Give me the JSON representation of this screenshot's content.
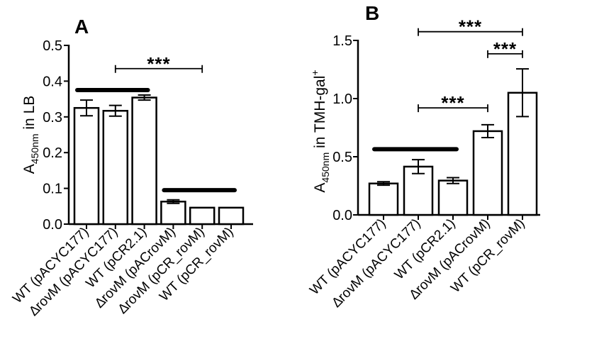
{
  "chart_data": [
    {
      "panel": "A",
      "type": "bar",
      "ylabel_main": "A",
      "ylabel_sub": "450nm",
      "ylabel_rest": " in LB",
      "ylim": [
        0,
        0.5
      ],
      "yticks": [
        {
          "v": 0.0,
          "label": "0.0"
        },
        {
          "v": 0.1,
          "label": "0.1"
        },
        {
          "v": 0.2,
          "label": "0.2"
        },
        {
          "v": 0.3,
          "label": "0.3"
        },
        {
          "v": 0.4,
          "label": "0.4"
        },
        {
          "v": 0.5,
          "label": "0.5"
        }
      ],
      "categories": [
        "WT (pACYC177)",
        "∆rovM (pACYC177)",
        "WT (pCR2.1)",
        "∆rovM (pACrovM)",
        "∆rovM (pCR_rovM)",
        "WT (pCR_rovM)"
      ],
      "values": [
        0.325,
        0.317,
        0.354,
        0.063,
        0.046,
        0.046
      ],
      "errors": [
        0.022,
        0.015,
        0.007,
        0.005,
        0,
        0
      ],
      "groups": [
        {
          "from": 0,
          "to": 2,
          "y": 0.375
        },
        {
          "from": 3,
          "to": 5,
          "y": 0.095
        }
      ],
      "significance": [
        {
          "from": 1,
          "to": 4,
          "y": 0.435,
          "label": "***"
        }
      ]
    },
    {
      "panel": "B",
      "type": "bar",
      "ylabel_main": "A",
      "ylabel_sub": "450nm",
      "ylabel_rest": " in TMH-gal",
      "ylabel_sup": "+",
      "ylim": [
        0,
        1.5
      ],
      "yticks": [
        {
          "v": 0.0,
          "label": "0.0"
        },
        {
          "v": 0.5,
          "label": "0.5"
        },
        {
          "v": 1.0,
          "label": "1.0"
        },
        {
          "v": 1.5,
          "label": "1.5"
        }
      ],
      "categories": [
        "WT (pACYC177)",
        "∆rovM (pACYC177)",
        "WT (pCR2.1)",
        "∆rovM (pACrovM)",
        "WT (pCR_rovM)"
      ],
      "values": [
        0.27,
        0.415,
        0.295,
        0.72,
        1.05
      ],
      "errors": [
        0.015,
        0.06,
        0.025,
        0.055,
        0.205
      ],
      "groups": [
        {
          "from": 0,
          "to": 2,
          "y": 0.565
        }
      ],
      "significance": [
        {
          "from": 1,
          "to": 3,
          "y": 0.92,
          "label": "***"
        },
        {
          "from": 3,
          "to": 4,
          "y": 1.385,
          "label": "***"
        },
        {
          "from": 1,
          "to": 4,
          "y": 1.575,
          "label": "***"
        }
      ]
    }
  ]
}
